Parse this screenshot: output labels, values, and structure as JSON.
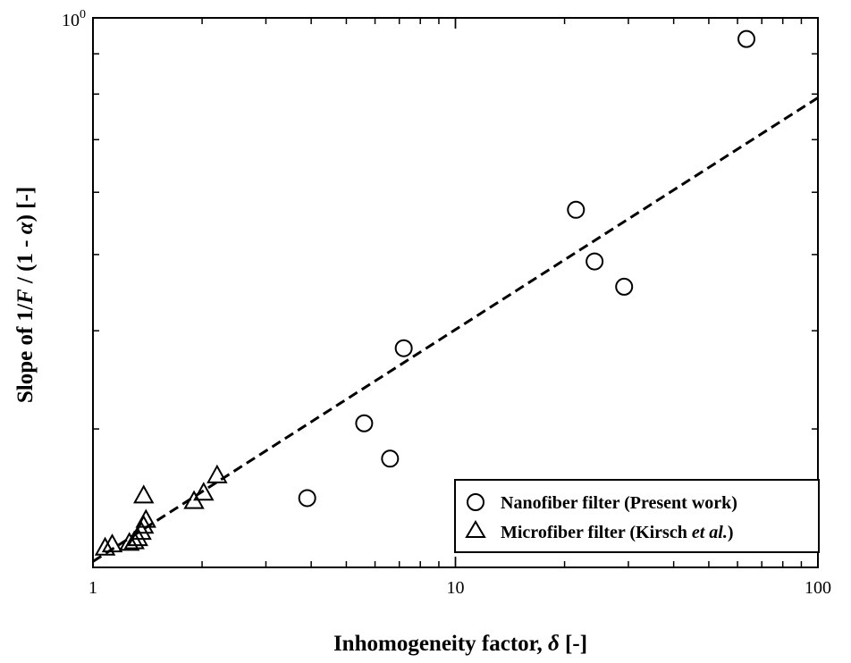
{
  "chart_data": {
    "type": "scatter",
    "xlabel": {
      "prefix": "Inhomogeneity factor, ",
      "symbol": "δ",
      "suffix": " [-]"
    },
    "ylabel": {
      "p1": "Slope of 1/",
      "p2": "F",
      "p3": " / (1 - ",
      "p4": "α",
      "p5": ") [-]"
    },
    "xscale": "log",
    "yscale": "log",
    "xlim": [
      1,
      100
    ],
    "ylim": [
      0.2,
      1.0
    ],
    "x_tick_labels": [
      {
        "value": 1,
        "label": "1"
      },
      {
        "value": 10,
        "label": "10"
      },
      {
        "value": 100,
        "label": "100"
      }
    ],
    "y_tick_labels": [
      {
        "value": 1,
        "base": "10",
        "exp": "0"
      }
    ],
    "grid": false,
    "legend_position": "bottom-right",
    "series": [
      {
        "name": "Nanofiber filter (Present work)",
        "marker": "circle",
        "x": [
          3.9,
          5.6,
          6.6,
          7.2,
          21.5,
          24.2,
          29.2,
          63.5
        ],
        "y": [
          0.245,
          0.305,
          0.275,
          0.38,
          0.57,
          0.49,
          0.455,
          0.94
        ]
      },
      {
        "name": "Microfiber filter (Kirsch et al.)",
        "name_parts": {
          "text": "Microfiber filter (Kirsch ",
          "italic": "et al.",
          "close": ")"
        },
        "marker": "triangle",
        "x": [
          1.08,
          1.13,
          1.26,
          1.3,
          1.33,
          1.36,
          1.38,
          1.4,
          1.38,
          1.9,
          2.02,
          2.2
        ],
        "y": [
          0.212,
          0.214,
          0.215,
          0.216,
          0.218,
          0.222,
          0.226,
          0.23,
          0.247,
          0.243,
          0.249,
          0.262
        ]
      }
    ],
    "trendline": {
      "style": "dashed",
      "x": [
        1,
        100
      ],
      "y": [
        0.2035,
        0.7915
      ]
    }
  }
}
